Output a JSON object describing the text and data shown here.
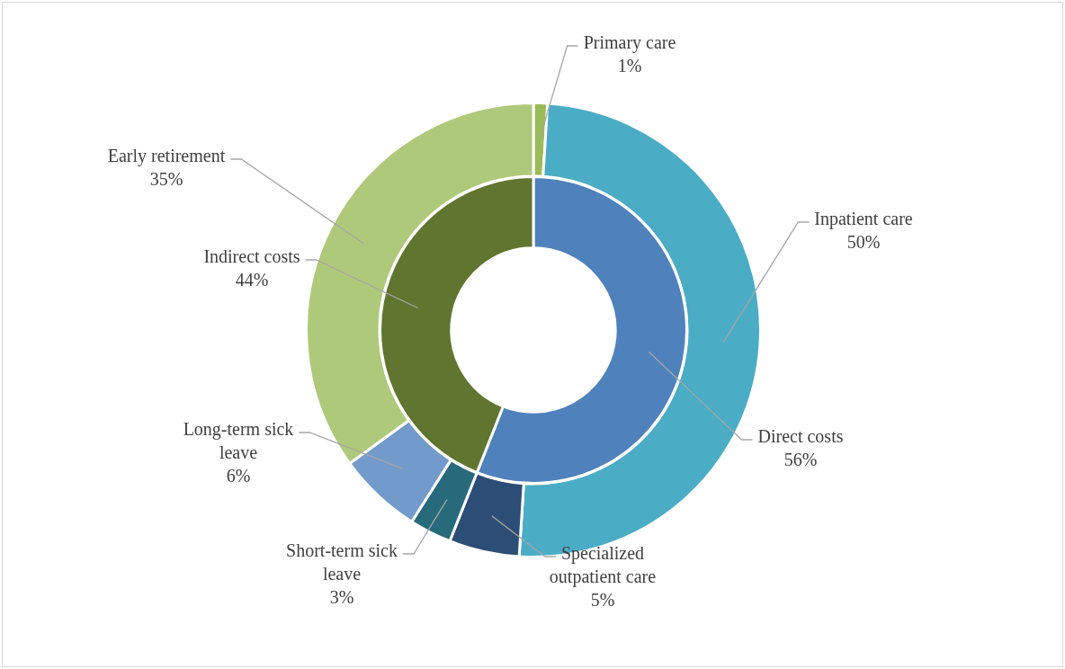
{
  "chart_data": [
    {
      "type": "donut",
      "categories": [
        "Primary care",
        "Inpatient care",
        "Specialized outpatient care",
        "Short-term sick leave",
        "Long-term sick leave",
        "Early retirement"
      ],
      "values": [
        1,
        50,
        5,
        3,
        6,
        35
      ],
      "value_labels": [
        "1%",
        "50%",
        "5%",
        "3%",
        "6%",
        "35%"
      ],
      "colors": [
        "#9bbb59",
        "#4bacc6",
        "#2c4d75",
        "#276a7c",
        "#729aca",
        "#afc97a"
      ],
      "legend": false
    },
    {
      "type": "donut",
      "categories": [
        "Direct costs",
        "Indirect costs"
      ],
      "values": [
        56,
        44
      ],
      "value_labels": [
        "56%",
        "44%"
      ],
      "colors": [
        "#4f81bd",
        "#60752f"
      ],
      "legend": false
    }
  ]
}
